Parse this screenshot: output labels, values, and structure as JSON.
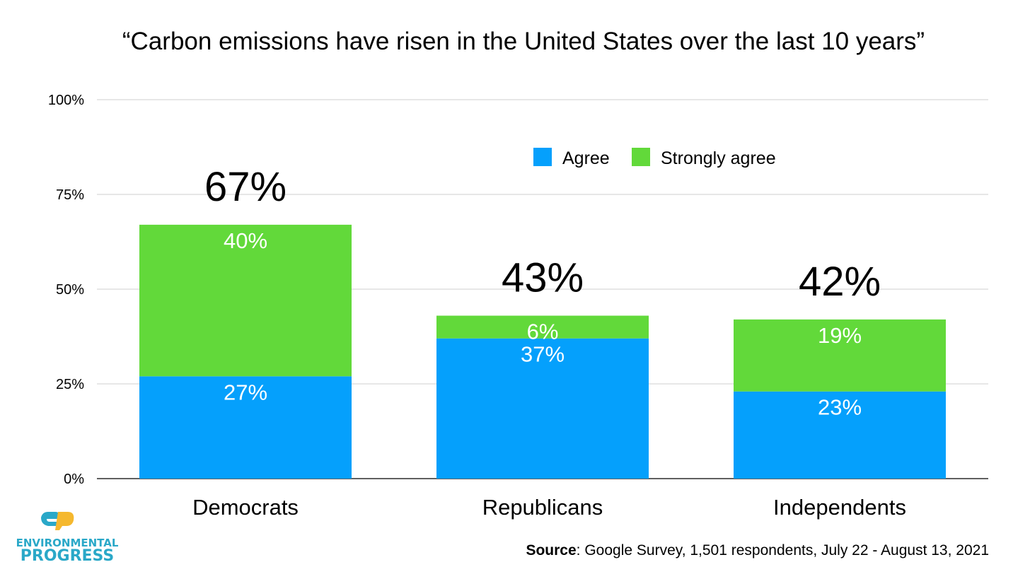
{
  "chart_data": {
    "type": "bar",
    "stacked": true,
    "title": "“Carbon emissions have risen in the United States over the last 10 years”",
    "categories": [
      "Democrats",
      "Republicans",
      "Independents"
    ],
    "series": [
      {
        "name": "Agree",
        "values": [
          27,
          37,
          23
        ],
        "labels": [
          "27%",
          "37%",
          "23%"
        ],
        "color": "#05a0fc"
      },
      {
        "name": "Strongly agree",
        "values": [
          40,
          6,
          19
        ],
        "labels": [
          "40%",
          "6%",
          "19%"
        ],
        "color": "#62d93a"
      }
    ],
    "totals": [
      67,
      43,
      42
    ],
    "total_labels": [
      "67%",
      "43%",
      "42%"
    ],
    "ylim": [
      0,
      100
    ],
    "yticks": [
      0,
      25,
      50,
      75,
      100
    ],
    "ytick_labels": [
      "0%",
      "25%",
      "50%",
      "75%",
      "100%"
    ],
    "grid": true,
    "legend_position": "top-right",
    "xlabel": "",
    "ylabel": ""
  },
  "source": {
    "label": "Source",
    "text": ": Google Survey, 1,501 respondents, July 22 - August 13, 2021"
  },
  "logo": {
    "line1": "ENVIRONMENTAL",
    "line2": "PROGRESS",
    "icon": "ep-logo-icon",
    "colors": [
      "#2aa8c8",
      "#f5b82e"
    ]
  }
}
